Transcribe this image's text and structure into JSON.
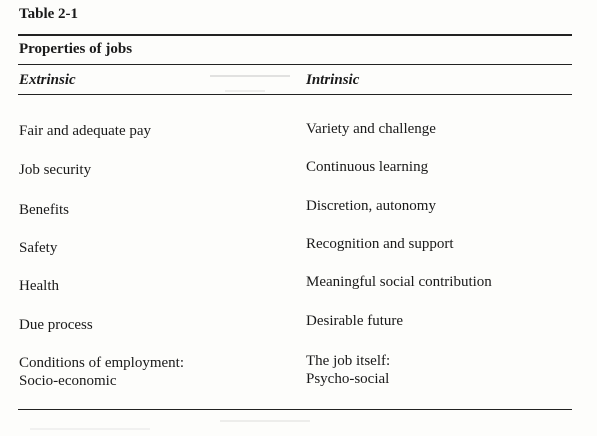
{
  "table_number": "Table 2-1",
  "caption": "Properties of jobs",
  "columns": {
    "left": "Extrinsic",
    "right": "Intrinsic"
  },
  "rows": [
    {
      "left": "Fair and adequate pay",
      "right": "Variety and challenge"
    },
    {
      "left": "Job security",
      "right": "Continuous learning"
    },
    {
      "left": "Benefits",
      "right": "Discretion, autonomy"
    },
    {
      "left": "Safety",
      "right": "Recognition and support"
    },
    {
      "left": "Health",
      "right": "Meaningful social contribution"
    },
    {
      "left": "Due process",
      "right": "Desirable future"
    },
    {
      "left": "Conditions of employment:",
      "right": "The job itself:"
    },
    {
      "left": "Socio-economic",
      "right": "Psycho-social"
    }
  ]
}
